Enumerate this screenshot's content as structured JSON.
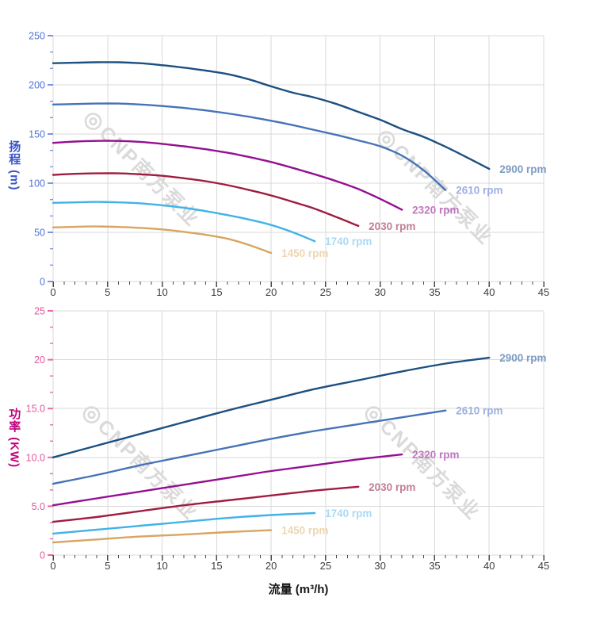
{
  "page": {
    "background": "#ffffff"
  },
  "watermark": {
    "logo_glyph": "◎",
    "text": "CNP南方泵业"
  },
  "colors": {
    "grid": "#d9d9d9",
    "x_tick": "#4a4a4a",
    "x_tick_label": "#3c3c3c",
    "head_axis": "#3a55c8",
    "power_axis": "#c1007d"
  },
  "chart_data": [
    {
      "id": "head",
      "type": "line",
      "ylabel": "扬程 (m)",
      "xlabel": "流量 (m³/h)",
      "xlim": [
        0,
        45
      ],
      "ylim": [
        0,
        250
      ],
      "x_ticks": [
        0,
        5,
        10,
        15,
        20,
        25,
        30,
        35,
        40,
        45
      ],
      "x_minor_step": 1,
      "y_ticks": [
        0,
        50,
        100,
        150,
        200,
        250
      ],
      "y_tick_labels": [
        "0",
        "50",
        "100",
        "150",
        "200",
        "250"
      ],
      "tick_color": "#7e93de",
      "tick_label_color": "#4f74d6",
      "grid": true,
      "legend_position": "end-of-line",
      "series": [
        {
          "name": "2900 rpm",
          "color": "#1c5080",
          "label_color": "#7e9cc2",
          "points": [
            [
              0,
              222
            ],
            [
              2,
              222.5
            ],
            [
              4,
              223
            ],
            [
              6,
              223
            ],
            [
              8,
              222
            ],
            [
              10,
              220
            ],
            [
              12,
              217.5
            ],
            [
              14,
              214.5
            ],
            [
              16,
              211
            ],
            [
              18,
              205.5
            ],
            [
              20,
              198.5
            ],
            [
              22,
              192
            ],
            [
              24,
              187
            ],
            [
              26,
              180.5
            ],
            [
              28,
              172.5
            ],
            [
              30,
              164.5
            ],
            [
              32,
              155
            ],
            [
              34,
              147
            ],
            [
              36,
              137
            ],
            [
              38,
              126
            ],
            [
              40,
              114.5
            ]
          ]
        },
        {
          "name": "2610 rpm",
          "color": "#4673b8",
          "label_color": "#9cb0e0",
          "points": [
            [
              0,
              180
            ],
            [
              2,
              180.5
            ],
            [
              4,
              181
            ],
            [
              6,
              181
            ],
            [
              8,
              180
            ],
            [
              10,
              178.5
            ],
            [
              12,
              176.5
            ],
            [
              14,
              174
            ],
            [
              16,
              171
            ],
            [
              18,
              167.5
            ],
            [
              20,
              163.5
            ],
            [
              22,
              159
            ],
            [
              24,
              154
            ],
            [
              26,
              149
            ],
            [
              28,
              143.5
            ],
            [
              30,
              137.5
            ],
            [
              32,
              128
            ],
            [
              34,
              113
            ],
            [
              36,
              93
            ]
          ]
        },
        {
          "name": "2320 rpm",
          "color": "#941092",
          "label_color": "#bf77bf",
          "points": [
            [
              0,
              141
            ],
            [
              2,
              142.3
            ],
            [
              4,
              143
            ],
            [
              6,
              143
            ],
            [
              8,
              142
            ],
            [
              10,
              140
            ],
            [
              12,
              137.5
            ],
            [
              14,
              134.5
            ],
            [
              16,
              131
            ],
            [
              18,
              126.5
            ],
            [
              20,
              121.5
            ],
            [
              22,
              115.5
            ],
            [
              24,
              109
            ],
            [
              26,
              102
            ],
            [
              28,
              94
            ],
            [
              30,
              84
            ],
            [
              32,
              73
            ]
          ]
        },
        {
          "name": "2030 rpm",
          "color": "#a01c40",
          "label_color": "#c07e92",
          "points": [
            [
              0,
              108.5
            ],
            [
              2,
              109.5
            ],
            [
              4,
              110
            ],
            [
              6,
              110
            ],
            [
              8,
              109
            ],
            [
              10,
              107.5
            ],
            [
              12,
              105
            ],
            [
              14,
              102
            ],
            [
              16,
              98
            ],
            [
              18,
              93
            ],
            [
              20,
              87.5
            ],
            [
              22,
              81
            ],
            [
              24,
              74
            ],
            [
              26,
              65.5
            ],
            [
              28,
              56.5
            ]
          ]
        },
        {
          "name": "1740 rpm",
          "color": "#41b2e8",
          "label_color": "#a9daf5",
          "points": [
            [
              0,
              80
            ],
            [
              2,
              80.5
            ],
            [
              4,
              81
            ],
            [
              6,
              80.5
            ],
            [
              8,
              79.5
            ],
            [
              10,
              77.5
            ],
            [
              12,
              75
            ],
            [
              14,
              71.5
            ],
            [
              16,
              67.5
            ],
            [
              18,
              63
            ],
            [
              20,
              57.5
            ],
            [
              22,
              50
            ],
            [
              24,
              41
            ]
          ]
        },
        {
          "name": "1450 rpm",
          "color": "#d8a562",
          "label_color": "#eed6b0",
          "points": [
            [
              0,
              55
            ],
            [
              2,
              55.6
            ],
            [
              4,
              56
            ],
            [
              6,
              55.5
            ],
            [
              8,
              54.5
            ],
            [
              10,
              53
            ],
            [
              12,
              50.5
            ],
            [
              14,
              47.5
            ],
            [
              16,
              43.5
            ],
            [
              18,
              37
            ],
            [
              20,
              29
            ]
          ]
        }
      ]
    },
    {
      "id": "power",
      "type": "line",
      "ylabel": "功率 (KW)",
      "xlabel": "流量 (m³/h)",
      "xlim": [
        0,
        45
      ],
      "ylim": [
        0,
        25
      ],
      "x_ticks": [
        0,
        5,
        10,
        15,
        20,
        25,
        30,
        35,
        40,
        45
      ],
      "x_minor_step": 1,
      "y_ticks": [
        0,
        5,
        10,
        15,
        20,
        25
      ],
      "y_tick_labels": [
        "0",
        "5.0",
        "10.0",
        "15.0",
        "20",
        "25"
      ],
      "tick_color": "#e06ca8",
      "tick_label_color": "#e2569c",
      "grid": true,
      "legend_position": "end-of-line",
      "series": [
        {
          "name": "2900 rpm",
          "color": "#1c5080",
          "label_color": "#7e9cc2",
          "points": [
            [
              0,
              10.0
            ],
            [
              4,
              11.2
            ],
            [
              8,
              12.4
            ],
            [
              12,
              13.6
            ],
            [
              16,
              14.8
            ],
            [
              20,
              15.9
            ],
            [
              24,
              17.0
            ],
            [
              28,
              17.9
            ],
            [
              32,
              18.8
            ],
            [
              36,
              19.6
            ],
            [
              40,
              20.2
            ]
          ]
        },
        {
          "name": "2610 rpm",
          "color": "#4673b8",
          "label_color": "#9cb0e0",
          "points": [
            [
              0,
              7.3
            ],
            [
              4,
              8.2
            ],
            [
              8,
              9.2
            ],
            [
              12,
              10.1
            ],
            [
              16,
              11.0
            ],
            [
              20,
              11.9
            ],
            [
              24,
              12.7
            ],
            [
              28,
              13.4
            ],
            [
              32,
              14.1
            ],
            [
              36,
              14.8
            ]
          ]
        },
        {
          "name": "2320 rpm",
          "color": "#941092",
          "label_color": "#bf77bf",
          "points": [
            [
              0,
              5.1
            ],
            [
              4,
              5.8
            ],
            [
              8,
              6.5
            ],
            [
              12,
              7.2
            ],
            [
              16,
              7.9
            ],
            [
              20,
              8.6
            ],
            [
              24,
              9.2
            ],
            [
              28,
              9.8
            ],
            [
              32,
              10.3
            ]
          ]
        },
        {
          "name": "2030 rpm",
          "color": "#a01c40",
          "label_color": "#c07e92",
          "points": [
            [
              0,
              3.4
            ],
            [
              4,
              3.9
            ],
            [
              8,
              4.5
            ],
            [
              12,
              5.1
            ],
            [
              16,
              5.6
            ],
            [
              20,
              6.1
            ],
            [
              24,
              6.6
            ],
            [
              28,
              7.0
            ]
          ]
        },
        {
          "name": "1740 rpm",
          "color": "#41b2e8",
          "label_color": "#a9daf5",
          "points": [
            [
              0,
              2.2
            ],
            [
              4,
              2.6
            ],
            [
              8,
              3.0
            ],
            [
              12,
              3.4
            ],
            [
              16,
              3.8
            ],
            [
              20,
              4.1
            ],
            [
              24,
              4.3
            ]
          ]
        },
        {
          "name": "1450 rpm",
          "color": "#d8a562",
          "label_color": "#eed6b0",
          "points": [
            [
              0,
              1.3
            ],
            [
              4,
              1.6
            ],
            [
              8,
              1.9
            ],
            [
              12,
              2.1
            ],
            [
              16,
              2.35
            ],
            [
              20,
              2.55
            ]
          ]
        }
      ]
    }
  ]
}
